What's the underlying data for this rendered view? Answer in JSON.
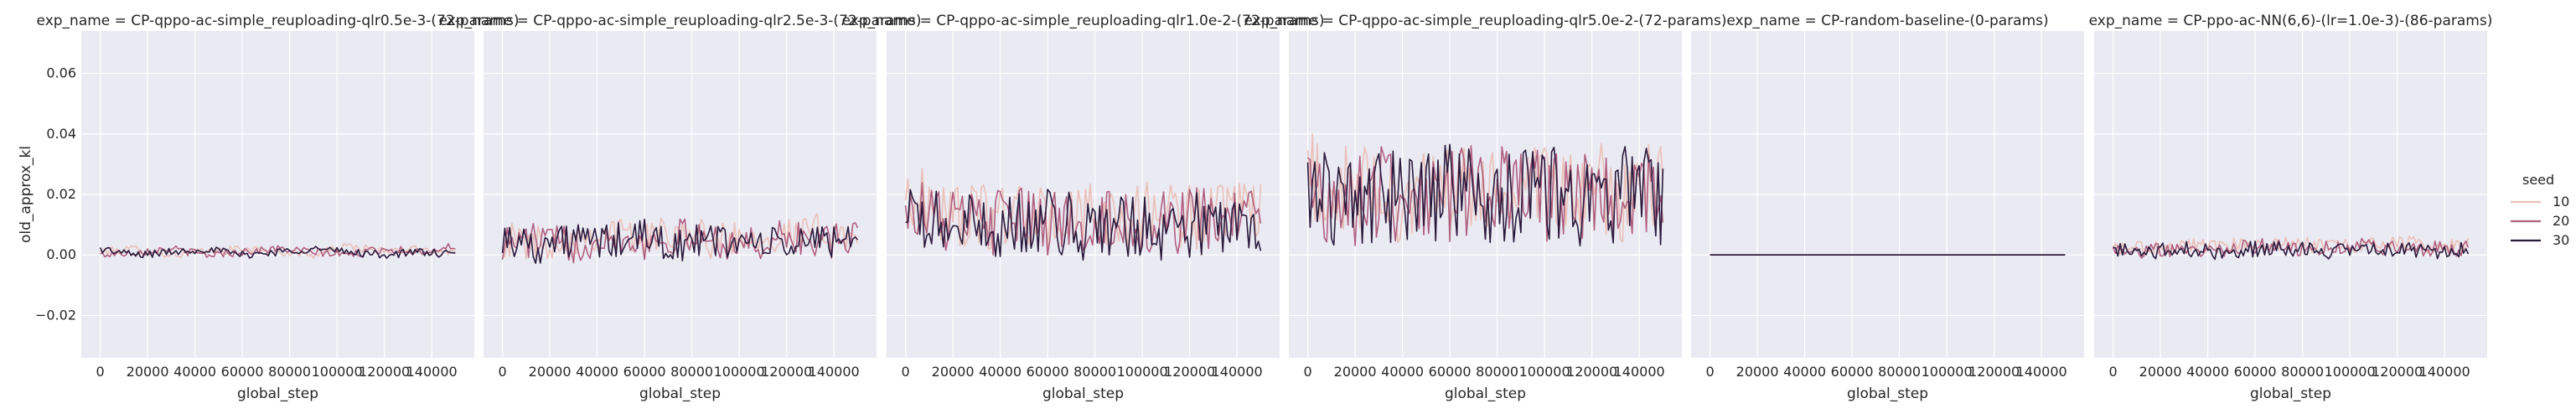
{
  "chart_data": {
    "type": "line",
    "xlabel": "global_step",
    "ylabel": "old_approx_kl",
    "xlim": [
      -8000,
      158000
    ],
    "ylim": [
      -0.034,
      0.074
    ],
    "x_ticks": [
      0,
      20000,
      40000,
      60000,
      80000,
      100000,
      120000,
      140000
    ],
    "y_ticks": [
      -0.02,
      0.0,
      0.02,
      0.04,
      0.06
    ],
    "y_tick_labels": [
      "−0.02",
      "0.00",
      "0.02",
      "0.04",
      "0.06"
    ],
    "grid": true,
    "legend_title": "seed",
    "legend_position": "right",
    "seeds": [
      "10",
      "20",
      "30"
    ],
    "colors": {
      "10": "#ebc0b8",
      "20": "#b0607f",
      "30": "#2a1a3c"
    },
    "panels": [
      {
        "title": "exp_name = CP-qppo-ac-simple_reuploading-qlr0.5e-3-(72-params)",
        "series": [
          {
            "name": "10",
            "x": [
              0,
              15000,
              30000,
              45000,
              60000,
              75000,
              90000,
              105000,
              120000,
              135000,
              150000
            ],
            "y": [
              0.001,
              0.002,
              0.0,
              0.001,
              0.002,
              0.001,
              0.0,
              0.003,
              0.001,
              0.002,
              0.001
            ]
          },
          {
            "name": "20",
            "x": [
              0,
              15000,
              30000,
              45000,
              60000,
              75000,
              90000,
              105000,
              120000,
              135000,
              150000
            ],
            "y": [
              0.0,
              0.001,
              0.002,
              0.0,
              0.001,
              0.002,
              0.001,
              0.0,
              0.002,
              0.001,
              0.003
            ]
          },
          {
            "name": "30",
            "x": [
              0,
              15000,
              30000,
              45000,
              60000,
              75000,
              90000,
              105000,
              120000,
              135000,
              150000
            ],
            "y": [
              0.002,
              0.0,
              0.001,
              0.002,
              0.0,
              0.001,
              0.002,
              0.001,
              0.0,
              0.001,
              0.0
            ]
          }
        ]
      },
      {
        "title": "exp_name = CP-qppo-ac-simple_reuploading-qlr2.5e-3-(72-params)",
        "series": [
          {
            "name": "10",
            "x": [
              0,
              15000,
              30000,
              45000,
              60000,
              75000,
              90000,
              105000,
              120000,
              135000,
              150000
            ],
            "y": [
              0.005,
              0.004,
              0.006,
              0.008,
              0.005,
              0.009,
              0.004,
              0.007,
              0.006,
              0.008,
              0.007
            ]
          },
          {
            "name": "20",
            "x": [
              0,
              15000,
              30000,
              45000,
              60000,
              75000,
              90000,
              105000,
              120000,
              135000,
              150000
            ],
            "y": [
              0.004,
              0.005,
              0.003,
              0.007,
              0.004,
              0.006,
              0.005,
              0.003,
              0.006,
              0.004,
              0.005
            ]
          },
          {
            "name": "30",
            "x": [
              0,
              15000,
              30000,
              45000,
              60000,
              75000,
              90000,
              105000,
              120000,
              135000,
              150000
            ],
            "y": [
              0.006,
              0.003,
              0.005,
              0.004,
              0.006,
              0.003,
              0.005,
              0.004,
              0.003,
              0.005,
              0.006
            ]
          }
        ]
      },
      {
        "title": "exp_name = CP-qppo-ac-simple_reuploading-qlr1.0e-2-(72-params)",
        "series": [
          {
            "name": "10",
            "x": [
              0,
              15000,
              30000,
              45000,
              60000,
              75000,
              90000,
              105000,
              120000,
              135000,
              150000
            ],
            "y": [
              0.02,
              0.015,
              0.012,
              0.014,
              0.011,
              0.013,
              0.012,
              0.015,
              0.013,
              0.012,
              0.014
            ]
          },
          {
            "name": "20",
            "x": [
              0,
              15000,
              30000,
              45000,
              60000,
              75000,
              90000,
              105000,
              120000,
              135000,
              150000
            ],
            "y": [
              0.018,
              0.012,
              0.01,
              0.012,
              0.01,
              0.011,
              0.012,
              0.01,
              0.011,
              0.012,
              0.01
            ]
          },
          {
            "name": "30",
            "x": [
              0,
              15000,
              30000,
              45000,
              60000,
              75000,
              90000,
              105000,
              120000,
              135000,
              150000
            ],
            "y": [
              0.012,
              0.01,
              0.009,
              0.01,
              0.011,
              0.009,
              0.01,
              0.009,
              0.01,
              0.009,
              0.01
            ]
          }
        ]
      },
      {
        "title": "exp_name = CP-qppo-ac-simple_reuploading-qlr5.0e-2-(72-params)",
        "series": [
          {
            "name": "10",
            "x": [
              0,
              15000,
              30000,
              45000,
              60000,
              75000,
              90000,
              105000,
              120000,
              135000,
              150000
            ],
            "y": [
              0.025,
              0.02,
              0.022,
              0.018,
              0.02,
              0.021,
              0.019,
              0.02,
              0.022,
              0.02,
              0.021
            ]
          },
          {
            "name": "20",
            "x": [
              0,
              15000,
              30000,
              45000,
              60000,
              75000,
              90000,
              105000,
              120000,
              135000,
              150000
            ],
            "y": [
              0.022,
              0.018,
              0.02,
              0.021,
              0.019,
              0.022,
              0.02,
              0.018,
              0.021,
              0.019,
              0.02
            ]
          },
          {
            "name": "30",
            "x": [
              0,
              15000,
              30000,
              45000,
              60000,
              75000,
              90000,
              105000,
              120000,
              135000,
              150000
            ],
            "y": [
              0.02,
              0.019,
              0.018,
              0.02,
              0.021,
              0.018,
              0.019,
              0.02,
              0.018,
              0.021,
              0.019
            ]
          }
        ]
      },
      {
        "title": "exp_name = CP-random-baseline-(0-params)",
        "series": [
          {
            "name": "10",
            "x": [
              0,
              150000
            ],
            "y": [
              0.0,
              0.0
            ]
          },
          {
            "name": "20",
            "x": [
              0,
              150000
            ],
            "y": [
              0.0,
              0.0
            ]
          },
          {
            "name": "30",
            "x": [
              0,
              150000
            ],
            "y": [
              0.0,
              0.0
            ]
          }
        ]
      },
      {
        "title": "exp_name = CP-ppo-ac-NN(6,6)-(lr=1.0e-3)-(86-params)",
        "series": [
          {
            "name": "10",
            "x": [
              0,
              15000,
              30000,
              45000,
              60000,
              75000,
              90000,
              105000,
              120000,
              135000,
              150000
            ],
            "y": [
              0.002,
              0.002,
              0.003,
              0.003,
              0.004,
              0.004,
              0.003,
              0.003,
              0.004,
              0.003,
              0.003
            ]
          },
          {
            "name": "20",
            "x": [
              0,
              15000,
              30000,
              45000,
              60000,
              75000,
              90000,
              105000,
              120000,
              135000,
              150000
            ],
            "y": [
              0.002,
              0.001,
              0.002,
              0.002,
              0.003,
              0.002,
              0.002,
              0.003,
              0.002,
              0.002,
              0.002
            ]
          },
          {
            "name": "30",
            "x": [
              0,
              15000,
              30000,
              45000,
              60000,
              75000,
              90000,
              105000,
              120000,
              135000,
              150000
            ],
            "y": [
              0.002,
              0.001,
              0.002,
              0.001,
              0.002,
              0.002,
              0.001,
              0.002,
              0.002,
              0.001,
              0.002
            ]
          }
        ]
      }
    ]
  }
}
